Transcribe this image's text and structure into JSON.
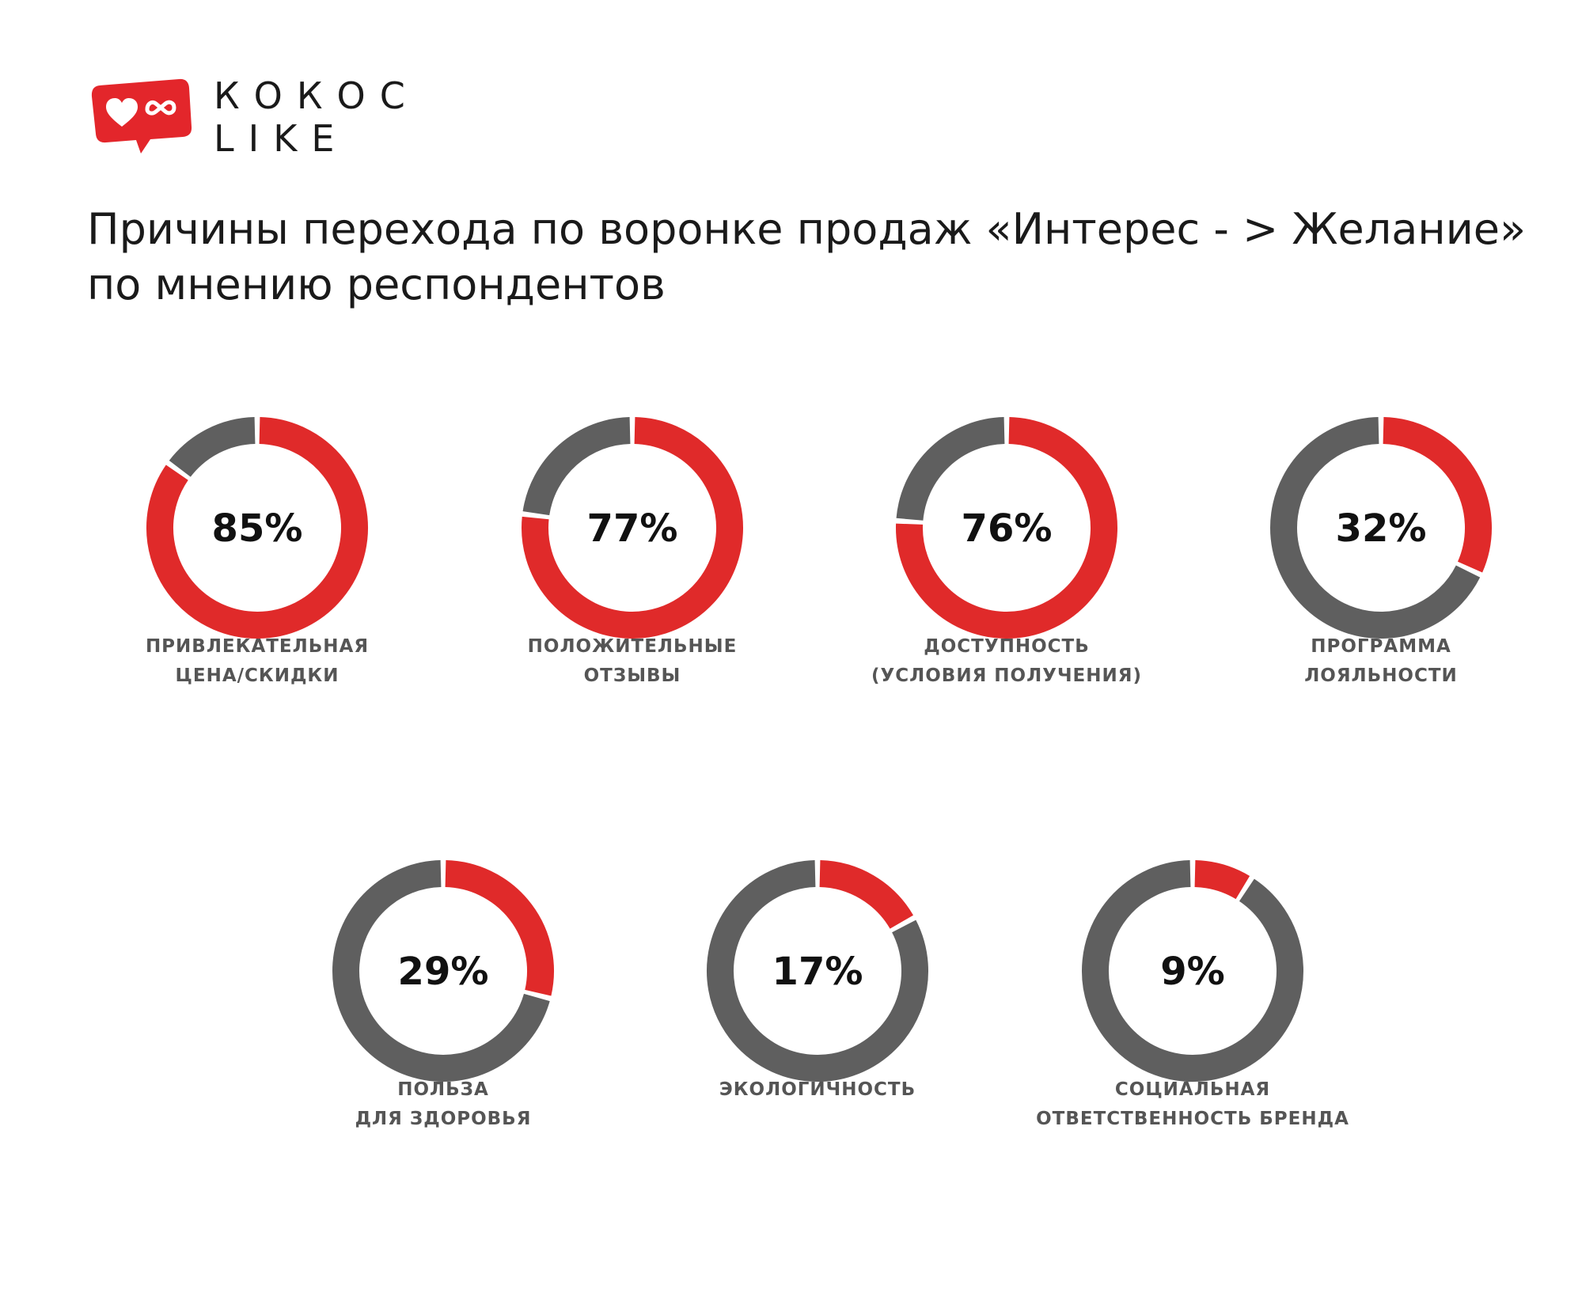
{
  "brand": {
    "line1": "КОКОС",
    "line2": "LIKE",
    "badge_color": "#E3262B"
  },
  "title": {
    "line1": "Причины перехода по воронке продаж «Интерес - > Желание»",
    "line2": "по мнению респондентов"
  },
  "colors": {
    "accent": "#E02A2A",
    "rest": "#5F5F5F",
    "value_text": "#111111",
    "label_text": "#555555"
  },
  "chart_data": {
    "type": "donut",
    "unit": "%",
    "items": [
      {
        "value": 85,
        "display": "85%",
        "label": [
          "ПРИВЛЕКАТЕЛЬНАЯ",
          "ЦЕНА/СКИДКИ"
        ]
      },
      {
        "value": 77,
        "display": "77%",
        "label": [
          "ПОЛОЖИТЕЛЬНЫЕ",
          "ОТЗЫВЫ"
        ]
      },
      {
        "value": 76,
        "display": "76%",
        "label": [
          "ДОСТУПНОСТЬ",
          "(УСЛОВИЯ ПОЛУЧЕНИЯ)"
        ]
      },
      {
        "value": 32,
        "display": "32%",
        "label": [
          "ПРОГРАММА",
          "ЛОЯЛЬНОСТИ"
        ]
      },
      {
        "value": 29,
        "display": "29%",
        "label": [
          "ПОЛЬЗА",
          "ДЛЯ ЗДОРОВЬЯ"
        ]
      },
      {
        "value": 17,
        "display": "17%",
        "label": [
          "ЭКОЛОГИЧНОСТЬ"
        ]
      },
      {
        "value": 9,
        "display": "9%",
        "label": [
          "СОЦИАЛЬНАЯ",
          "ОТВЕТСТВЕННОСТЬ БРЕНДА"
        ]
      }
    ]
  }
}
